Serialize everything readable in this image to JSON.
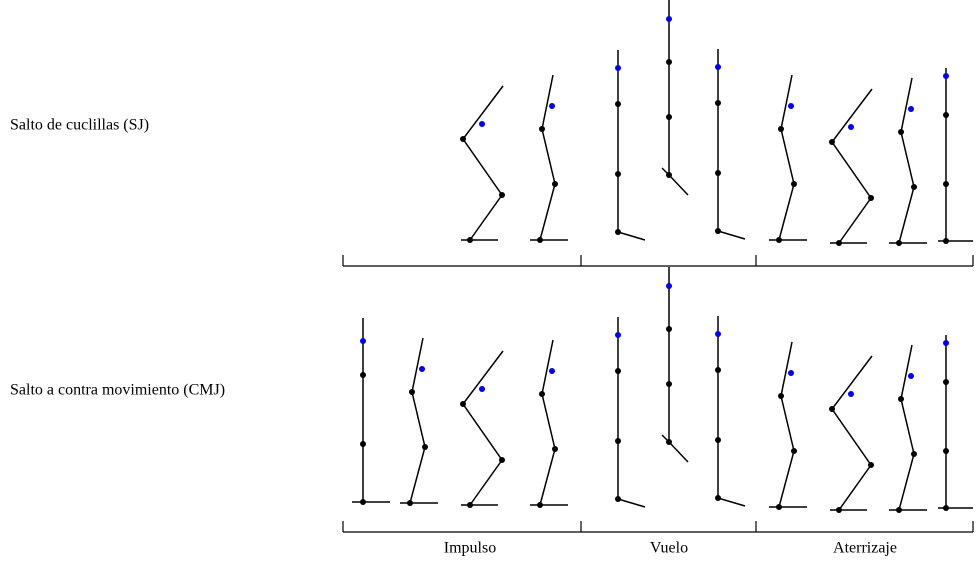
{
  "rows": [
    {
      "label": "Salto de cuclillas (SJ)"
    },
    {
      "label": "Salto a contra movimiento (CMJ)"
    }
  ],
  "phases": [
    {
      "label": "Impulso"
    },
    {
      "label": "Vuelo"
    },
    {
      "label": "Aterrizaje"
    }
  ]
}
